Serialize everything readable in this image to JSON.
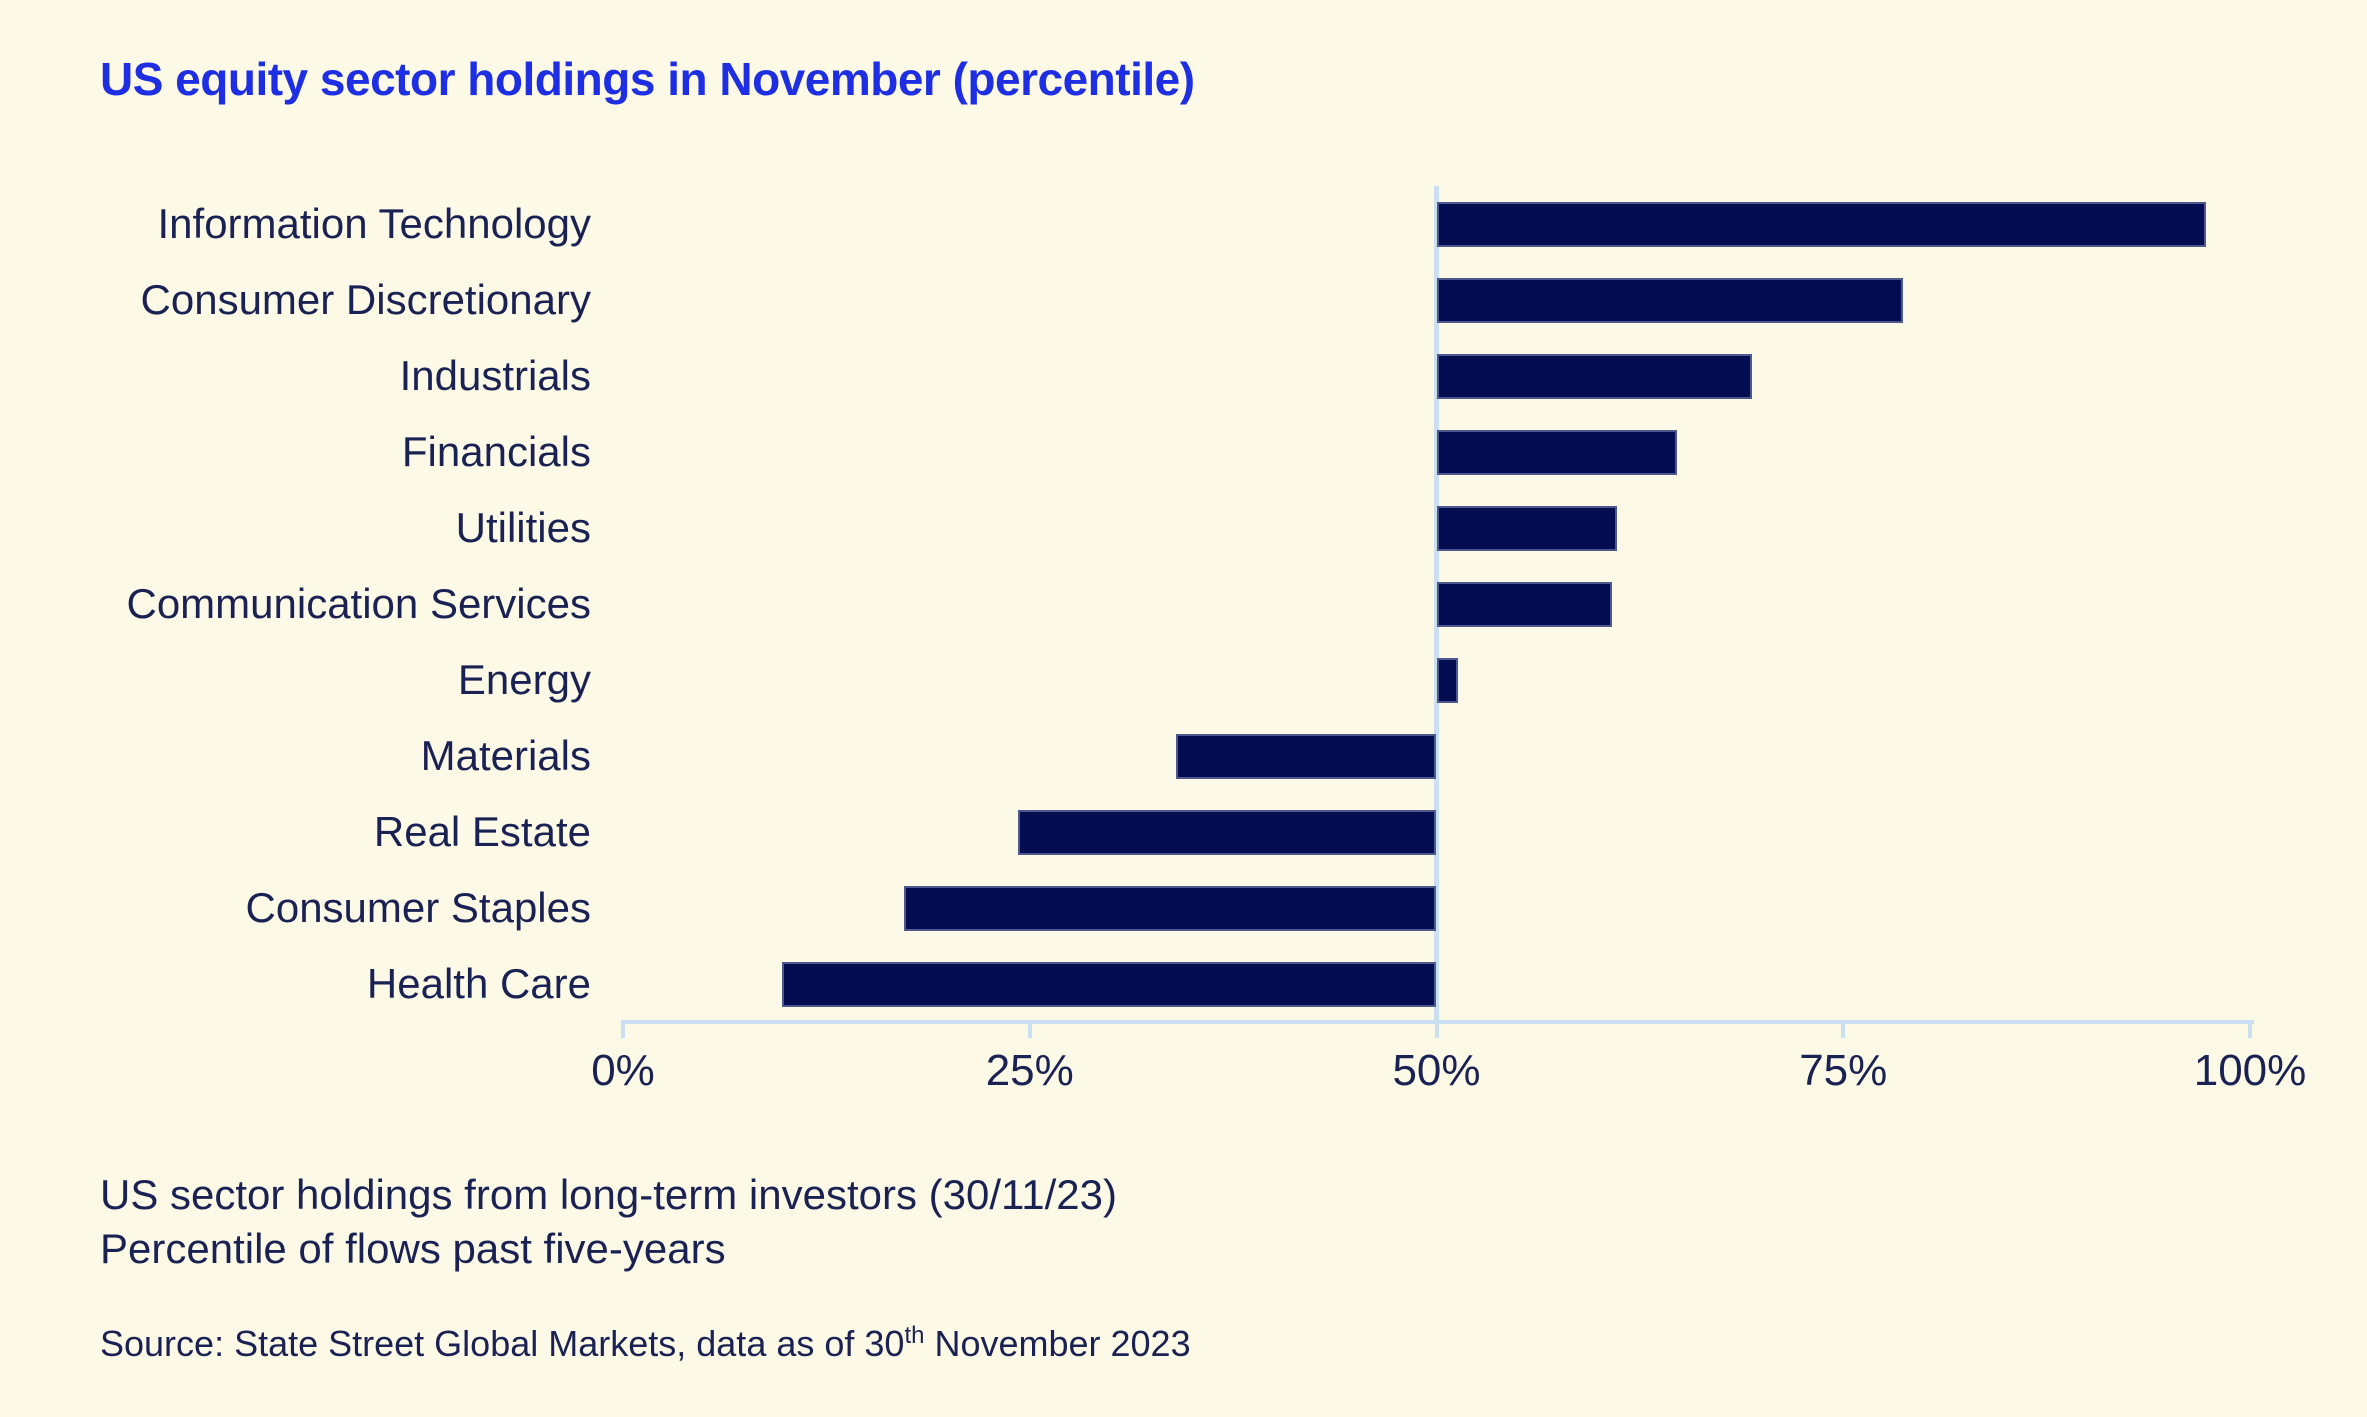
{
  "title": "US equity sector holdings in November (percentile)",
  "chart_data": {
    "type": "bar",
    "orientation": "horizontal",
    "baseline": 50,
    "categories": [
      "Information Technology",
      "Consumer Discretionary",
      "Industrials",
      "Financials",
      "Utilities",
      "Communication Services",
      "Energy",
      "Materials",
      "Real Estate",
      "Consumer Staples",
      "Health Care"
    ],
    "values": [
      97.3,
      78.7,
      69.4,
      64.8,
      61.1,
      60.8,
      51.3,
      34.0,
      24.3,
      17.3,
      9.8
    ],
    "xlim": [
      0,
      100
    ],
    "tick_values": [
      0,
      25,
      50,
      75,
      100
    ],
    "tick_labels": [
      "0%",
      "25%",
      "50%",
      "75%",
      "100%"
    ],
    "xlabel": "",
    "ylabel": "",
    "grid": "single vertical line at 50% baseline",
    "legend": "none",
    "bar_color": "#040C52",
    "axis_color": "#CBDFF3"
  },
  "footer": {
    "line1": "US sector holdings from long-term investors (30/11/23)",
    "line2": "Percentile of flows past five-years",
    "source_prefix": "Source: State Street Global Markets, data as of 30",
    "source_sup": "th",
    "source_suffix": " November 2023"
  },
  "colors": {
    "background": "#FDF9E7",
    "title": "#1E2FE3",
    "text": "#1A2254",
    "bar": "#040C52",
    "axis": "#CBDFF3"
  }
}
